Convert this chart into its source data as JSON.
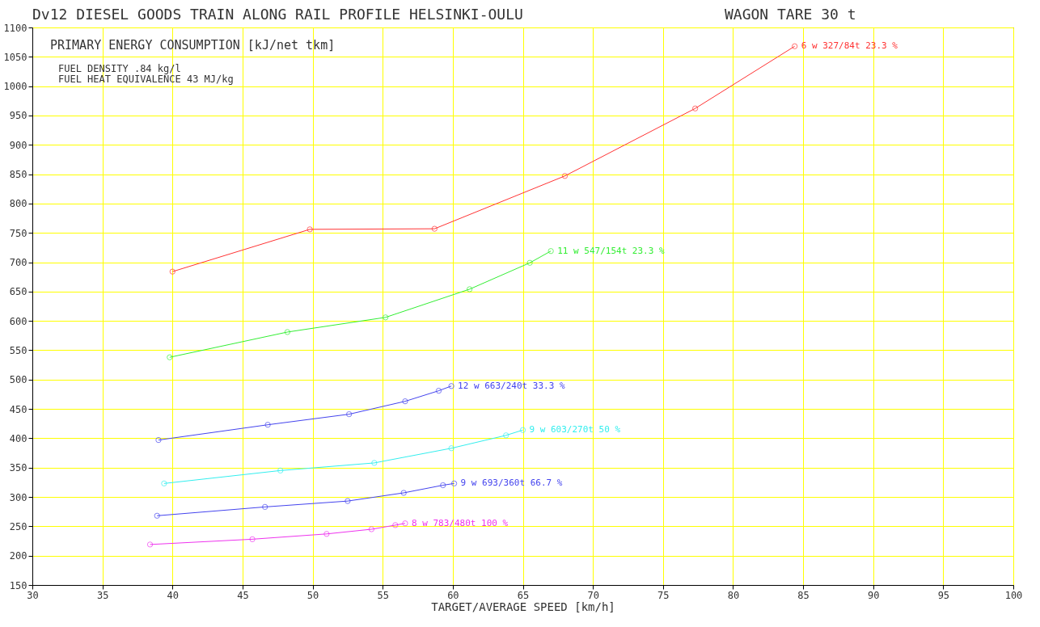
{
  "chart_data": {
    "type": "line",
    "title": "Dv12 DIESEL GOODS TRAIN ALONG RAIL PROFILE HELSINKI-OULU",
    "subtitle": "WAGON TARE 30 t",
    "xlabel": "TARGET/AVERAGE SPEED [km/h]",
    "annotations": [
      "PRIMARY ENERGY CONSUMPTION [kJ/net tkm]",
      "FUEL DENSITY .84 kg/l",
      "FUEL HEAT EQUIVALENCE 43 MJ/kg"
    ],
    "xlim": [
      30,
      100
    ],
    "xticks": [
      30,
      35,
      40,
      45,
      50,
      55,
      60,
      65,
      70,
      75,
      80,
      85,
      90,
      95,
      100
    ],
    "ylim": [
      150,
      1100
    ],
    "yticks": [
      150,
      200,
      250,
      300,
      350,
      400,
      450,
      500,
      550,
      600,
      650,
      700,
      750,
      800,
      850,
      900,
      950,
      1000,
      1050,
      1100
    ],
    "grid": true,
    "legend": false,
    "marker": "circle",
    "line_style": "solid",
    "series": [
      {
        "name": "6 w 327/84t 23.3 %",
        "color": "#ff3333",
        "x": [
          40,
          49.8,
          58.7,
          68,
          77.3,
          84.4
        ],
        "values": [
          684,
          756,
          757,
          847,
          962,
          1068
        ]
      },
      {
        "name": "11 w 547/154t 23.3 %",
        "color": "#33ee33",
        "x": [
          39.8,
          48.2,
          55.2,
          61.2,
          65.5,
          67
        ],
        "values": [
          538,
          581,
          606,
          654,
          699,
          719
        ]
      },
      {
        "name": "12 w 663/240t 33.3 %",
        "color": "#4444ee",
        "x": [
          39,
          46.8,
          52.6,
          56.6,
          59,
          59.9
        ],
        "values": [
          397,
          423,
          441,
          463,
          481,
          489
        ]
      },
      {
        "name": "9 w 603/270t 50 %",
        "color": "#33eeee",
        "x": [
          39.4,
          47.7,
          54.4,
          59.9,
          63.8,
          65
        ],
        "values": [
          323,
          345,
          358,
          383,
          405,
          414
        ]
      },
      {
        "name": "9 w 693/360t 66.7 %",
        "color": "#4444ee",
        "x": [
          38.9,
          46.6,
          52.5,
          56.5,
          59.3,
          60.1
        ],
        "values": [
          268,
          283,
          293,
          307,
          320,
          323
        ]
      },
      {
        "name": "8 w 783/480t 100 %",
        "color": "#ee33ee",
        "x": [
          38.4,
          45.7,
          51,
          54.2,
          55.9,
          56.6
        ],
        "values": [
          219,
          228,
          237,
          245,
          252,
          255
        ]
      }
    ]
  }
}
